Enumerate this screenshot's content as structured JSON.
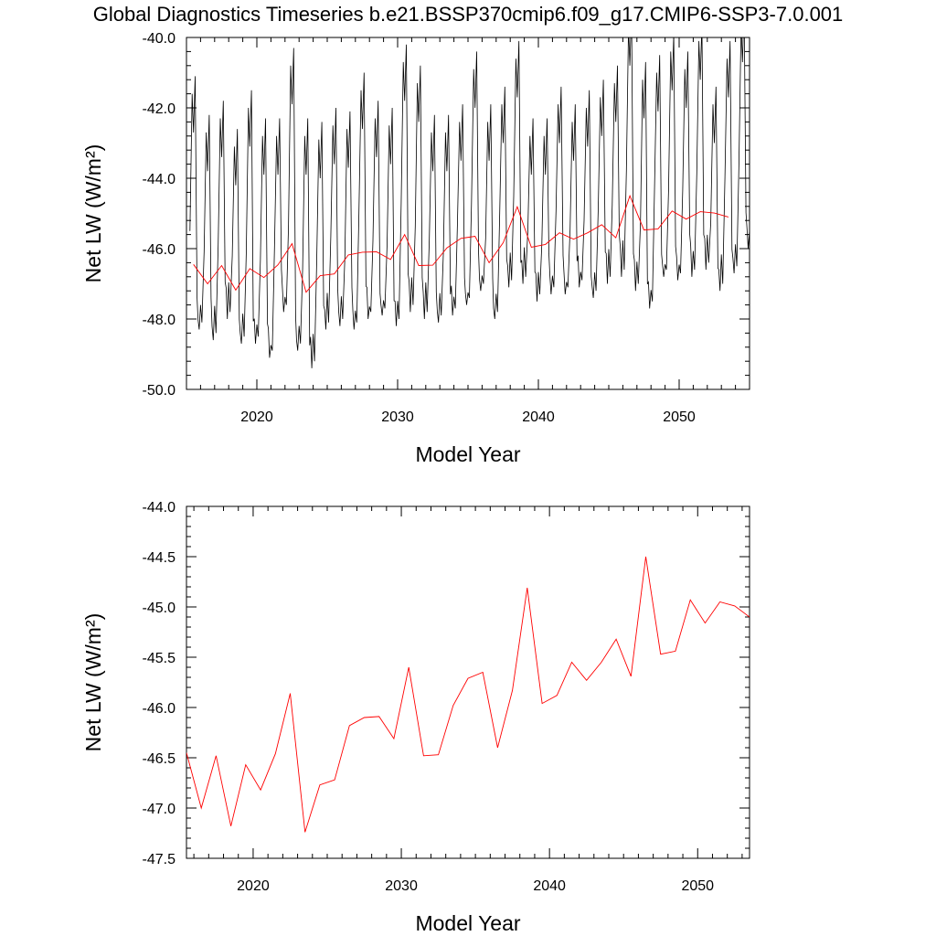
{
  "page": {
    "title": "Global Diagnostics Timeseries b.e21.BSSP370cmip6.f09_g17.CMIP6-SSP3-7.0.001"
  },
  "chart_data": [
    {
      "type": "line",
      "xlabel": "Model Year",
      "ylabel": "Net LW (W/m²)",
      "xlim": [
        2015,
        2055
      ],
      "ylim": [
        -50,
        -40
      ],
      "xticks": [
        2020,
        2030,
        2040,
        2050
      ],
      "yticks": [
        -50,
        -48,
        -46,
        -44,
        -42,
        -40
      ],
      "ytick_labels": [
        "-50.0",
        "-48.0",
        "-46.0",
        "-44.0",
        "-42.0",
        "-40.0"
      ],
      "grid": false,
      "series": [
        {
          "role": "monthly",
          "color": "#000000",
          "peaks": [
            [
              2015.5,
              -42.7
            ],
            [
              2016.5,
              -43.8
            ],
            [
              2017.5,
              -43.4
            ],
            [
              2018.5,
              -44.2
            ],
            [
              2019.5,
              -43.1
            ],
            [
              2020.5,
              -43.9
            ],
            [
              2021.5,
              -43.9
            ],
            [
              2022.5,
              -41.9
            ],
            [
              2023.5,
              -43.9
            ],
            [
              2024.5,
              -44.0
            ],
            [
              2025.5,
              -43.6
            ],
            [
              2026.5,
              -43.7
            ],
            [
              2027.5,
              -42.6
            ],
            [
              2028.5,
              -43.4
            ],
            [
              2029.5,
              -43.6
            ],
            [
              2030.5,
              -41.8
            ],
            [
              2031.5,
              -42.4
            ],
            [
              2032.5,
              -43.8
            ],
            [
              2033.5,
              -43.8
            ],
            [
              2034.5,
              -43.5
            ],
            [
              2035.5,
              -42.0
            ],
            [
              2036.5,
              -43.5
            ],
            [
              2037.5,
              -43.0
            ],
            [
              2038.5,
              -41.7
            ],
            [
              2039.5,
              -43.9
            ],
            [
              2040.5,
              -43.9
            ],
            [
              2041.5,
              -43.0
            ],
            [
              2042.5,
              -43.5
            ],
            [
              2043.5,
              -43.1
            ],
            [
              2044.5,
              -42.8
            ],
            [
              2045.5,
              -42.4
            ],
            [
              2046.5,
              -40.8
            ],
            [
              2047.5,
              -42.3
            ],
            [
              2048.5,
              -42.1
            ],
            [
              2049.5,
              -41.5
            ],
            [
              2050.5,
              -42.0
            ],
            [
              2051.5,
              -41.2
            ],
            [
              2052.5,
              -43.0
            ],
            [
              2053.5,
              -41.7
            ],
            [
              2054.5,
              -40.7
            ]
          ],
          "troughs": [
            [
              2015.9,
              -48.3
            ],
            [
              2016.9,
              -48.6
            ],
            [
              2017.9,
              -48.0
            ],
            [
              2018.9,
              -48.7
            ],
            [
              2019.9,
              -48.7
            ],
            [
              2020.9,
              -49.1
            ],
            [
              2021.9,
              -47.8
            ],
            [
              2022.9,
              -48.9
            ],
            [
              2023.9,
              -49.4
            ],
            [
              2024.9,
              -48.3
            ],
            [
              2025.9,
              -48.2
            ],
            [
              2026.9,
              -48.3
            ],
            [
              2027.9,
              -48.0
            ],
            [
              2028.9,
              -47.9
            ],
            [
              2029.9,
              -48.2
            ],
            [
              2030.9,
              -47.8
            ],
            [
              2031.9,
              -48.0
            ],
            [
              2032.9,
              -48.1
            ],
            [
              2033.9,
              -47.9
            ],
            [
              2034.9,
              -47.6
            ],
            [
              2035.9,
              -47.2
            ],
            [
              2036.9,
              -48.0
            ],
            [
              2037.9,
              -47.1
            ],
            [
              2038.9,
              -47.0
            ],
            [
              2039.9,
              -47.5
            ],
            [
              2040.9,
              -47.3
            ],
            [
              2041.9,
              -47.3
            ],
            [
              2042.9,
              -47.1
            ],
            [
              2043.9,
              -47.4
            ],
            [
              2044.9,
              -47.0
            ],
            [
              2045.9,
              -46.8
            ],
            [
              2046.9,
              -47.2
            ],
            [
              2047.9,
              -47.7
            ],
            [
              2048.9,
              -46.8
            ],
            [
              2049.9,
              -46.9
            ],
            [
              2050.9,
              -46.8
            ],
            [
              2051.9,
              -46.6
            ],
            [
              2052.9,
              -47.2
            ],
            [
              2053.9,
              -46.7
            ],
            [
              2054.9,
              -46.0
            ]
          ]
        },
        {
          "role": "annual-mean",
          "color": "#ff0000",
          "x": [
            2015.5,
            2016.5,
            2017.5,
            2018.5,
            2019.5,
            2020.5,
            2021.5,
            2022.5,
            2023.5,
            2024.5,
            2025.5,
            2026.5,
            2027.5,
            2028.5,
            2029.5,
            2030.5,
            2031.5,
            2032.5,
            2033.5,
            2034.5,
            2035.5,
            2036.5,
            2037.5,
            2038.5,
            2039.5,
            2040.5,
            2041.5,
            2042.5,
            2043.5,
            2044.5,
            2045.5,
            2046.5,
            2047.5,
            2048.5,
            2049.5,
            2050.5,
            2051.5,
            2052.5,
            2053.5
          ],
          "y": [
            -46.45,
            -47.0,
            -46.48,
            -47.18,
            -46.57,
            -46.82,
            -46.46,
            -45.86,
            -47.24,
            -46.77,
            -46.72,
            -46.18,
            -46.1,
            -46.09,
            -46.31,
            -45.6,
            -46.48,
            -46.47,
            -45.98,
            -45.71,
            -45.65,
            -46.4,
            -45.83,
            -44.81,
            -45.96,
            -45.88,
            -45.55,
            -45.73,
            -45.55,
            -45.32,
            -45.69,
            -44.5,
            -45.47,
            -45.44,
            -44.93,
            -45.16,
            -44.95,
            -44.99,
            -45.1
          ]
        }
      ]
    },
    {
      "type": "line",
      "xlabel": "Model Year",
      "ylabel": "Net LW (W/m²)",
      "xlim": [
        2015.5,
        2053.5
      ],
      "ylim": [
        -47.5,
        -44.0
      ],
      "xticks": [
        2020,
        2030,
        2040,
        2050
      ],
      "yticks": [
        -47.5,
        -47.0,
        -46.5,
        -46.0,
        -45.5,
        -45.0,
        -44.5,
        -44.0
      ],
      "ytick_labels": [
        "-47.5",
        "-47.0",
        "-46.5",
        "-46.0",
        "-45.5",
        "-45.0",
        "-44.5",
        "-44.0"
      ],
      "grid": false,
      "series": [
        {
          "role": "annual-mean",
          "color": "#ff0000",
          "x": [
            2015.5,
            2016.5,
            2017.5,
            2018.5,
            2019.5,
            2020.5,
            2021.5,
            2022.5,
            2023.5,
            2024.5,
            2025.5,
            2026.5,
            2027.5,
            2028.5,
            2029.5,
            2030.5,
            2031.5,
            2032.5,
            2033.5,
            2034.5,
            2035.5,
            2036.5,
            2037.5,
            2038.5,
            2039.5,
            2040.5,
            2041.5,
            2042.5,
            2043.5,
            2044.5,
            2045.5,
            2046.5,
            2047.5,
            2048.5,
            2049.5,
            2050.5,
            2051.5,
            2052.5,
            2053.5
          ],
          "y": [
            -46.45,
            -47.0,
            -46.48,
            -47.18,
            -46.57,
            -46.82,
            -46.46,
            -45.86,
            -47.24,
            -46.77,
            -46.72,
            -46.18,
            -46.1,
            -46.09,
            -46.31,
            -45.6,
            -46.48,
            -46.47,
            -45.98,
            -45.71,
            -45.65,
            -46.4,
            -45.83,
            -44.81,
            -45.96,
            -45.88,
            -45.55,
            -45.73,
            -45.55,
            -45.32,
            -45.69,
            -44.5,
            -45.47,
            -45.44,
            -44.93,
            -45.16,
            -44.95,
            -44.99,
            -45.1
          ]
        }
      ]
    }
  ]
}
